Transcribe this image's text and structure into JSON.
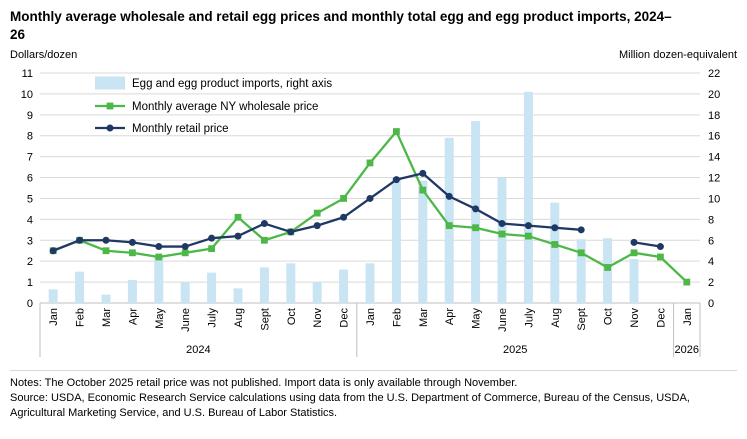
{
  "title": "Monthly average wholesale and retail egg prices and monthly total egg and egg product imports, 2024–26",
  "left_axis_title": "Dollars/dozen",
  "right_axis_title": "Million dozen-equivalent",
  "notes": "Notes: The October 2025 retail price was not published. Import data is only available through November.",
  "source": "Source: USDA, Economic Research Service calculations using data from the U.S. Department of Commerce, Bureau of the Census, USDA, Agricultural Marketing Service, and U.S. Bureau of Labor Statistics.",
  "colors": {
    "grid": "#d9d9d9",
    "axis_line": "#bfbfbf",
    "text": "#000000"
  },
  "chart_data": {
    "type": "combo",
    "subtypes": [
      "bar",
      "line",
      "line"
    ],
    "title": "Monthly average wholesale and retail egg prices and monthly total egg and egg product imports, 2024–26",
    "grid": true,
    "legend_position": "top-left-inside",
    "categories": [
      "Jan",
      "Feb",
      "Mar",
      "Apr",
      "May",
      "June",
      "July",
      "Aug",
      "Sept",
      "Oct",
      "Nov",
      "Dec",
      "Jan",
      "Feb",
      "Mar",
      "Apr",
      "May",
      "June",
      "July",
      "Aug",
      "Sept",
      "Oct",
      "Nov",
      "Dec",
      "Jan"
    ],
    "year_groups": [
      {
        "label": "2024",
        "start": 0,
        "end": 11
      },
      {
        "label": "2025",
        "start": 12,
        "end": 23
      },
      {
        "label": "2026",
        "start": 24,
        "end": 24
      }
    ],
    "left_axis": {
      "title": "Dollars/dozen",
      "min": 0,
      "max": 11,
      "step": 1
    },
    "right_axis": {
      "title": "Million dozen-equivalent",
      "min": 0,
      "max": 22,
      "step": 2
    },
    "series": [
      {
        "id": "imports",
        "name": "Egg and egg product imports, right axis",
        "type": "bar",
        "axis": "right",
        "color": "#c9e4f3",
        "values": [
          1.3,
          3.0,
          0.8,
          2.2,
          4.4,
          2.0,
          2.9,
          1.4,
          3.4,
          3.8,
          2.0,
          3.2,
          3.8,
          12.0,
          11.7,
          15.8,
          17.4,
          12.0,
          20.2,
          9.6,
          6.1,
          6.2,
          4.2,
          null,
          null
        ]
      },
      {
        "id": "wholesale",
        "name": "Monthly average NY wholesale price",
        "type": "line",
        "marker": "square",
        "axis": "left",
        "color": "#4db848",
        "values": [
          2.5,
          3.0,
          2.5,
          2.4,
          2.2,
          2.4,
          2.6,
          4.1,
          3.0,
          3.4,
          4.3,
          5.0,
          6.7,
          8.2,
          5.4,
          3.7,
          3.6,
          3.3,
          3.2,
          2.8,
          2.4,
          1.7,
          2.4,
          2.2,
          1.0
        ]
      },
      {
        "id": "retail",
        "name": "Monthly retail price",
        "type": "line",
        "marker": "circle",
        "axis": "left",
        "color": "#1f3864",
        "values": [
          2.5,
          3.0,
          3.0,
          2.9,
          2.7,
          2.7,
          3.1,
          3.2,
          3.8,
          3.4,
          3.7,
          4.1,
          5.0,
          5.9,
          6.2,
          5.1,
          4.5,
          3.8,
          3.7,
          3.6,
          3.5,
          null,
          2.9,
          2.7,
          null
        ]
      }
    ]
  }
}
